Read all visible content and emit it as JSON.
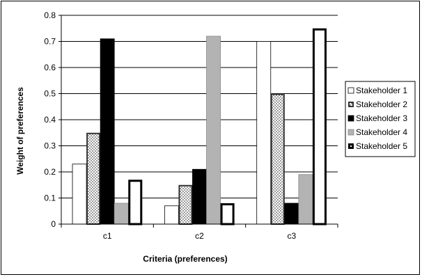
{
  "chart_data": {
    "type": "bar",
    "categories": [
      "c1",
      "c2",
      "c3"
    ],
    "series": [
      {
        "name": "Stakeholder 1",
        "values": [
          0.23,
          0.07,
          0.7
        ],
        "style": "white",
        "color": "#ffffff"
      },
      {
        "name": "Stakeholder 2",
        "values": [
          0.35,
          0.15,
          0.5
        ],
        "style": "dotted",
        "color": "#666666"
      },
      {
        "name": "Stakeholder 3",
        "values": [
          0.71,
          0.21,
          0.08
        ],
        "style": "black",
        "color": "#000000"
      },
      {
        "name": "Stakeholder 4",
        "values": [
          0.08,
          0.72,
          0.19
        ],
        "style": "gray",
        "color": "#b3b3b3"
      },
      {
        "name": "Stakeholder 5",
        "values": [
          0.17,
          0.08,
          0.75
        ],
        "style": "thick-outline",
        "color": "#ffffff"
      }
    ],
    "yticks": [
      "0",
      "0.1",
      "0.2",
      "0.3",
      "0.4",
      "0.5",
      "0.6",
      "0.7",
      "0.8"
    ],
    "xlabel": "Criteria (preferences)",
    "ylabel": "Weight of preferences",
    "ylim": [
      0,
      0.8
    ],
    "grid": true,
    "legend_position": "right"
  }
}
